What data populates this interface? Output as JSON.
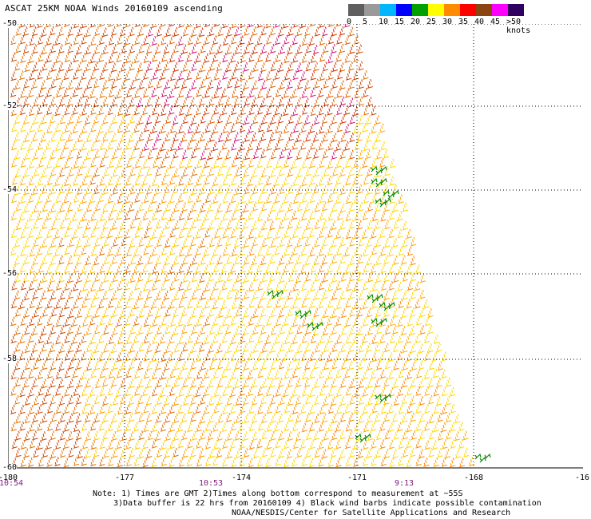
{
  "header": {
    "title": "ASCAT 25KM NOAA Winds 20160109 ascending"
  },
  "legend": {
    "bins": [
      {
        "label": "0",
        "color": "#5f5f5f"
      },
      {
        "label": "5",
        "color": "#9a9a9a"
      },
      {
        "label": "10",
        "color": "#00b6ff"
      },
      {
        "label": "15",
        "color": "#0000ff"
      },
      {
        "label": "20",
        "color": "#00a000"
      },
      {
        "label": "25",
        "color": "#ffff00"
      },
      {
        "label": "30",
        "color": "#ff8c00"
      },
      {
        "label": "35",
        "color": "#ff0000"
      },
      {
        "label": "40",
        "color": "#8b4513"
      },
      {
        "label": "45",
        "color": "#ff00ff"
      },
      {
        "label": ">50 knots",
        "color": "#8000ff"
      }
    ],
    "extra_color": "#300060"
  },
  "map": {
    "lon_ticks": [
      "-180",
      "-177",
      "-174",
      "-171",
      "-168",
      "-16"
    ],
    "lat_ticks": [
      "-50",
      "-52",
      "-54",
      "-56",
      "-58",
      "-60"
    ],
    "time_labels": [
      "10:54",
      "10:53",
      "9:13"
    ],
    "lon_range": [
      -180,
      -165
    ],
    "lat_range": [
      -60,
      -50
    ],
    "grid": true
  },
  "notes": {
    "line1": "Note: 1) Times are GMT 2)Times along bottom correspond to measurement at ~55S",
    "line2": "3)Data buffer is 22 hrs from 20160109 4) Black wind barbs indicate possible contamination",
    "line3": "NOAA/NESDIS/Center for Satellite Applications and Research"
  }
}
